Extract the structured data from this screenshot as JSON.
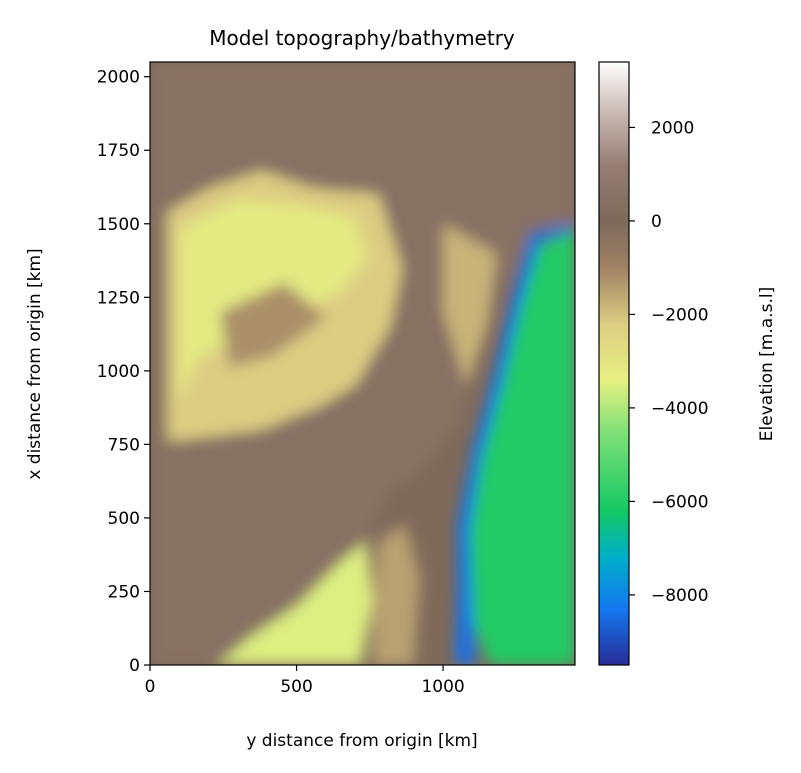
{
  "chart_data": {
    "type": "heatmap",
    "title": "Model topography/bathymetry",
    "xlabel": "y distance from origin [km]",
    "ylabel": "x distance from origin [km]",
    "xlim": [
      0,
      1450
    ],
    "ylim": [
      0,
      2050
    ],
    "xticks": [
      0,
      500,
      1000
    ],
    "xtick_labels": [
      "0",
      "500",
      "1000"
    ],
    "yticks": [
      0,
      250,
      500,
      750,
      1000,
      1250,
      1500,
      1750,
      2000
    ],
    "ytick_labels": [
      "0",
      "250",
      "500",
      "750",
      "1000",
      "1250",
      "1500",
      "1750",
      "2000"
    ],
    "colorbar": {
      "label": "Elevation [m.a.s.l]",
      "colormap": "terrain",
      "vmin": -9500,
      "vmax": 3400,
      "ticks": [
        2000,
        0,
        -2000,
        -4000,
        -6000,
        -8000
      ],
      "tick_labels": [
        "2000",
        "0",
        "−2000",
        "−4000",
        "−6000",
        "−8000"
      ]
    },
    "regions": [
      {
        "label": "land",
        "elevation": 500,
        "points": [
          [
            0,
            2050
          ],
          [
            1450,
            2050
          ],
          [
            1450,
            1500
          ],
          [
            1300,
            1500
          ],
          [
            1200,
            1280
          ],
          [
            1120,
            1050
          ],
          [
            1050,
            820
          ],
          [
            900,
            640
          ],
          [
            820,
            600
          ],
          [
            760,
            470
          ],
          [
            720,
            360
          ],
          [
            650,
            250
          ],
          [
            560,
            150
          ],
          [
            500,
            60
          ],
          [
            450,
            0
          ],
          [
            0,
            0
          ]
        ]
      },
      {
        "label": "continental-shelf",
        "elevation": -2200,
        "points": [
          [
            60,
            1540
          ],
          [
            200,
            1620
          ],
          [
            380,
            1680
          ],
          [
            560,
            1620
          ],
          [
            780,
            1600
          ],
          [
            860,
            1350
          ],
          [
            820,
            1150
          ],
          [
            700,
            950
          ],
          [
            580,
            880
          ],
          [
            380,
            800
          ],
          [
            230,
            780
          ],
          [
            60,
            760
          ]
        ]
      },
      {
        "label": "shallow-basin",
        "elevation": -3200,
        "points": [
          [
            100,
            1480
          ],
          [
            300,
            1580
          ],
          [
            520,
            1560
          ],
          [
            700,
            1520
          ],
          [
            740,
            1380
          ],
          [
            640,
            1260
          ],
          [
            480,
            1200
          ],
          [
            330,
            1120
          ],
          [
            170,
            1050
          ],
          [
            100,
            900
          ]
        ]
      },
      {
        "label": "basin-ridge",
        "elevation": -1200,
        "points": [
          [
            240,
            1200
          ],
          [
            460,
            1300
          ],
          [
            600,
            1180
          ],
          [
            420,
            1050
          ],
          [
            270,
            1010
          ]
        ]
      },
      {
        "label": "interior-slope",
        "elevation": -1800,
        "points": [
          [
            1000,
            1500
          ],
          [
            1180,
            1400
          ],
          [
            1150,
            1150
          ],
          [
            1080,
            950
          ],
          [
            1000,
            1200
          ]
        ]
      },
      {
        "label": "southern-shelf",
        "elevation": -3500,
        "points": [
          [
            230,
            0
          ],
          [
            720,
            0
          ],
          [
            760,
            220
          ],
          [
            740,
            420
          ],
          [
            650,
            350
          ],
          [
            500,
            200
          ],
          [
            350,
            100
          ]
        ]
      },
      {
        "label": "southern-slope",
        "elevation": -1500,
        "points": [
          [
            760,
            0
          ],
          [
            900,
            0
          ],
          [
            920,
            300
          ],
          [
            870,
            480
          ],
          [
            780,
            420
          ],
          [
            760,
            200
          ]
        ]
      },
      {
        "label": "abyssal-plain",
        "elevation": -6000,
        "points": [
          [
            1160,
            0
          ],
          [
            1450,
            0
          ],
          [
            1450,
            1480
          ],
          [
            1320,
            1420
          ],
          [
            1240,
            1200
          ],
          [
            1160,
            950
          ],
          [
            1100,
            700
          ],
          [
            1070,
            450
          ],
          [
            1080,
            200
          ]
        ]
      },
      {
        "label": "trench",
        "elevation": -8400,
        "points": [
          [
            1040,
            0
          ],
          [
            1110,
            0
          ],
          [
            1100,
            200
          ],
          [
            1090,
            450
          ],
          [
            1130,
            700
          ],
          [
            1200,
            950
          ],
          [
            1260,
            1200
          ],
          [
            1330,
            1440
          ],
          [
            1450,
            1480
          ],
          [
            1450,
            1500
          ],
          [
            1300,
            1470
          ],
          [
            1230,
            1230
          ],
          [
            1170,
            980
          ],
          [
            1100,
            730
          ],
          [
            1050,
            480
          ],
          [
            1050,
            250
          ]
        ]
      }
    ]
  }
}
